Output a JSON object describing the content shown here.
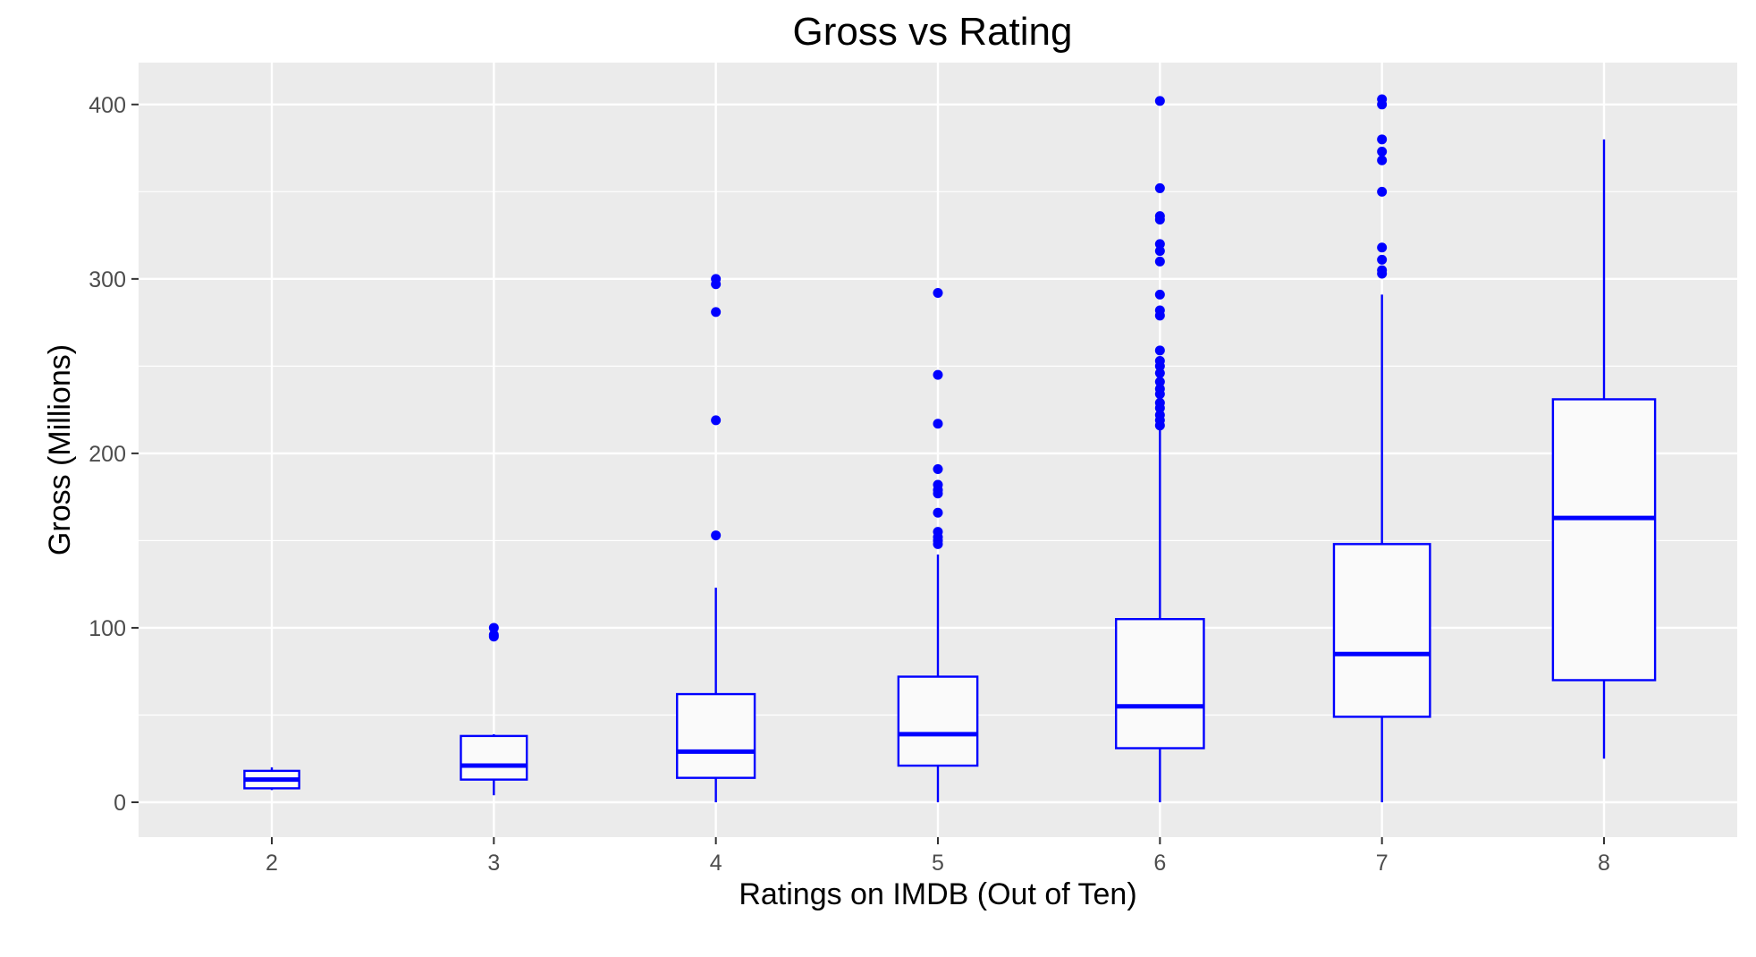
{
  "chart_data": {
    "type": "boxplot",
    "title": "Gross vs Rating",
    "xlabel": "Ratings on IMDB (Out of Ten)",
    "ylabel": "Gross (Millions)",
    "x_ticks": [
      "2",
      "3",
      "4",
      "5",
      "6",
      "7",
      "8"
    ],
    "y_ticks": [
      0,
      100,
      200,
      300,
      400
    ],
    "xlim": [
      1.4,
      8.6
    ],
    "ylim": [
      -20,
      424
    ],
    "grid": true,
    "colors": {
      "box": "#0000ff",
      "panel": "#ebebeb",
      "grid": "#ffffff",
      "box_fill": "#fafafa"
    },
    "boxes": [
      {
        "x": 2,
        "low": 7,
        "q1": 8,
        "median": 13,
        "q3": 18,
        "high": 20,
        "outliers": []
      },
      {
        "x": 3,
        "low": 4,
        "q1": 13,
        "median": 21,
        "q3": 38,
        "high": 39,
        "outliers": [
          95,
          96,
          100
        ]
      },
      {
        "x": 4,
        "low": 0,
        "q1": 14,
        "median": 29,
        "q3": 62,
        "high": 123,
        "outliers": [
          153,
          219,
          281,
          297,
          300
        ]
      },
      {
        "x": 5,
        "low": 0,
        "q1": 21,
        "median": 39,
        "q3": 72,
        "high": 142,
        "outliers": [
          148,
          150,
          152,
          155,
          166,
          177,
          179,
          182,
          191,
          217,
          245,
          292
        ]
      },
      {
        "x": 6,
        "low": 0,
        "q1": 31,
        "median": 55,
        "q3": 105,
        "high": 214,
        "outliers": [
          216,
          219,
          222,
          226,
          229,
          234,
          237,
          241,
          246,
          250,
          253,
          259,
          279,
          282,
          291,
          310,
          316,
          320,
          334,
          336,
          352,
          402
        ]
      },
      {
        "x": 7,
        "low": 0,
        "q1": 49,
        "median": 85,
        "q3": 148,
        "high": 291,
        "outliers": [
          303,
          305,
          311,
          318,
          350,
          368,
          373,
          380,
          400,
          403
        ]
      },
      {
        "x": 8,
        "low": 25,
        "q1": 70,
        "median": 163,
        "q3": 231,
        "high": 380,
        "outliers": []
      }
    ]
  }
}
